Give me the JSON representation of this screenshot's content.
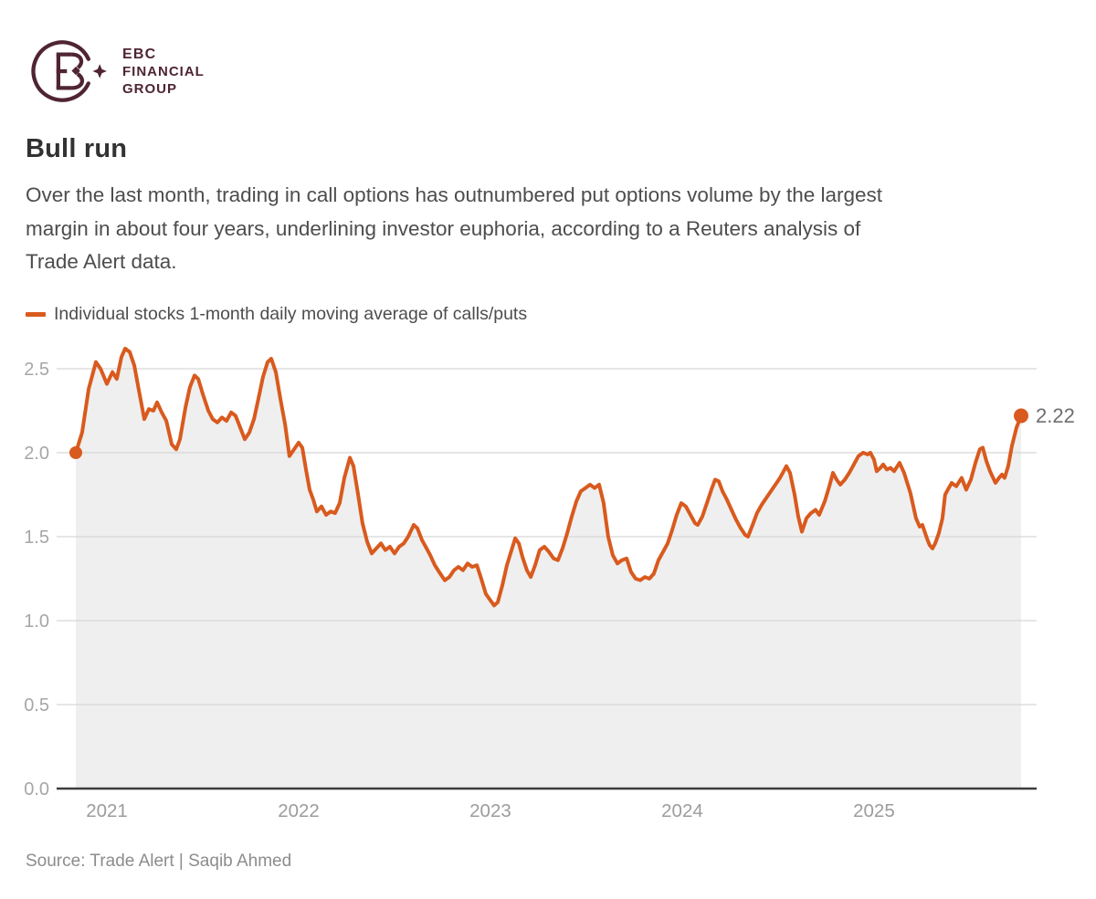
{
  "logo": {
    "line1": "EBC",
    "line2": "FINANCIAL",
    "line3": "GROUP"
  },
  "header": {
    "title": "Bull run"
  },
  "subtitle_lines": [
    "Over the last month, trading in call options has outnumbered put options volume by the largest",
    "margin in about four years, underlining investor euphoria, according to a Reuters analysis of",
    "Trade Alert data."
  ],
  "legend": {
    "label": "Individual stocks 1-month daily moving average of calls/puts"
  },
  "source": "Source: Trade Alert | Saqib Ahmed",
  "colors": {
    "accent": "#d95a1e",
    "logo": "#4f2433",
    "area_fill": "#efefef",
    "grid": "#d8d8d8",
    "axis": "#3d3d3d",
    "y_tick_text": "#a6a6a6",
    "x_tick_text": "#9c9c9c",
    "end_label_text": "#6e6e6e",
    "title_text": "#323232",
    "body_text": "#4d4d4d",
    "source_text": "#8c8c8c"
  },
  "chart_data": {
    "type": "area",
    "title": "Bull run",
    "series_name": "Individual stocks 1-month daily moving average of calls/puts",
    "grid": "horizontal",
    "legend_position": "top-left",
    "x_domain": [
      2020.738,
      2025.848
    ],
    "ylim": [
      0,
      2.674
    ],
    "y_ticks": [
      0.0,
      0.5,
      1.0,
      1.5,
      2.0,
      2.5
    ],
    "y_tick_labels": [
      "0.0",
      "0.5",
      "1.0",
      "1.5",
      "2.0",
      "2.5"
    ],
    "x_ticks": [
      2021,
      2022,
      2023,
      2024,
      2025
    ],
    "x_tick_labels": [
      "2021",
      "2022",
      "2023",
      "2024",
      "2025"
    ],
    "first_value": 2.0,
    "last_value": 2.22,
    "end_label": "2.22",
    "points": [
      [
        2020.838,
        2.0
      ],
      [
        2020.871,
        2.12
      ],
      [
        2020.905,
        2.38
      ],
      [
        2020.943,
        2.54
      ],
      [
        2020.967,
        2.5
      ],
      [
        2021.0,
        2.41
      ],
      [
        2021.029,
        2.48
      ],
      [
        2021.052,
        2.44
      ],
      [
        2021.076,
        2.57
      ],
      [
        2021.095,
        2.62
      ],
      [
        2021.119,
        2.6
      ],
      [
        2021.143,
        2.52
      ],
      [
        2021.167,
        2.37
      ],
      [
        2021.195,
        2.2
      ],
      [
        2021.219,
        2.26
      ],
      [
        2021.243,
        2.25
      ],
      [
        2021.262,
        2.3
      ],
      [
        2021.286,
        2.24
      ],
      [
        2021.31,
        2.19
      ],
      [
        2021.338,
        2.05
      ],
      [
        2021.362,
        2.02
      ],
      [
        2021.381,
        2.08
      ],
      [
        2021.41,
        2.27
      ],
      [
        2021.433,
        2.39
      ],
      [
        2021.457,
        2.46
      ],
      [
        2021.476,
        2.44
      ],
      [
        2021.5,
        2.35
      ],
      [
        2021.529,
        2.25
      ],
      [
        2021.552,
        2.2
      ],
      [
        2021.576,
        2.18
      ],
      [
        2021.6,
        2.21
      ],
      [
        2021.624,
        2.19
      ],
      [
        2021.648,
        2.24
      ],
      [
        2021.671,
        2.22
      ],
      [
        2021.695,
        2.15
      ],
      [
        2021.719,
        2.08
      ],
      [
        2021.743,
        2.12
      ],
      [
        2021.767,
        2.2
      ],
      [
        2021.79,
        2.32
      ],
      [
        2021.814,
        2.45
      ],
      [
        2021.838,
        2.54
      ],
      [
        2021.857,
        2.56
      ],
      [
        2021.881,
        2.48
      ],
      [
        2021.905,
        2.32
      ],
      [
        2021.929,
        2.17
      ],
      [
        2021.952,
        1.98
      ],
      [
        2021.976,
        2.02
      ],
      [
        2022.0,
        2.06
      ],
      [
        2022.019,
        2.03
      ],
      [
        2022.038,
        1.9
      ],
      [
        2022.057,
        1.78
      ],
      [
        2022.076,
        1.72
      ],
      [
        2022.095,
        1.65
      ],
      [
        2022.119,
        1.68
      ],
      [
        2022.143,
        1.63
      ],
      [
        2022.167,
        1.65
      ],
      [
        2022.19,
        1.64
      ],
      [
        2022.214,
        1.7
      ],
      [
        2022.238,
        1.85
      ],
      [
        2022.267,
        1.97
      ],
      [
        2022.286,
        1.92
      ],
      [
        2022.31,
        1.75
      ],
      [
        2022.333,
        1.58
      ],
      [
        2022.357,
        1.47
      ],
      [
        2022.381,
        1.4
      ],
      [
        2022.405,
        1.43
      ],
      [
        2022.429,
        1.46
      ],
      [
        2022.452,
        1.42
      ],
      [
        2022.476,
        1.44
      ],
      [
        2022.5,
        1.4
      ],
      [
        2022.524,
        1.44
      ],
      [
        2022.548,
        1.46
      ],
      [
        2022.571,
        1.5
      ],
      [
        2022.6,
        1.57
      ],
      [
        2022.619,
        1.55
      ],
      [
        2022.643,
        1.48
      ],
      [
        2022.667,
        1.43
      ],
      [
        2022.686,
        1.39
      ],
      [
        2022.71,
        1.33
      ],
      [
        2022.738,
        1.28
      ],
      [
        2022.762,
        1.24
      ],
      [
        2022.786,
        1.26
      ],
      [
        2022.81,
        1.3
      ],
      [
        2022.833,
        1.32
      ],
      [
        2022.857,
        1.3
      ],
      [
        2022.881,
        1.34
      ],
      [
        2022.905,
        1.32
      ],
      [
        2022.929,
        1.33
      ],
      [
        2022.952,
        1.25
      ],
      [
        2022.976,
        1.16
      ],
      [
        2023.0,
        1.12
      ],
      [
        2023.019,
        1.09
      ],
      [
        2023.038,
        1.11
      ],
      [
        2023.062,
        1.21
      ],
      [
        2023.086,
        1.33
      ],
      [
        2023.11,
        1.42
      ],
      [
        2023.129,
        1.49
      ],
      [
        2023.148,
        1.46
      ],
      [
        2023.167,
        1.38
      ],
      [
        2023.19,
        1.3
      ],
      [
        2023.21,
        1.26
      ],
      [
        2023.233,
        1.33
      ],
      [
        2023.257,
        1.42
      ],
      [
        2023.281,
        1.44
      ],
      [
        2023.305,
        1.41
      ],
      [
        2023.329,
        1.37
      ],
      [
        2023.352,
        1.36
      ],
      [
        2023.376,
        1.43
      ],
      [
        2023.4,
        1.52
      ],
      [
        2023.424,
        1.62
      ],
      [
        2023.448,
        1.71
      ],
      [
        2023.471,
        1.77
      ],
      [
        2023.495,
        1.79
      ],
      [
        2023.519,
        1.81
      ],
      [
        2023.543,
        1.79
      ],
      [
        2023.567,
        1.81
      ],
      [
        2023.59,
        1.7
      ],
      [
        2023.614,
        1.5
      ],
      [
        2023.638,
        1.39
      ],
      [
        2023.662,
        1.34
      ],
      [
        2023.686,
        1.36
      ],
      [
        2023.71,
        1.37
      ],
      [
        2023.733,
        1.29
      ],
      [
        2023.757,
        1.25
      ],
      [
        2023.781,
        1.24
      ],
      [
        2023.805,
        1.26
      ],
      [
        2023.829,
        1.25
      ],
      [
        2023.852,
        1.28
      ],
      [
        2023.876,
        1.36
      ],
      [
        2023.9,
        1.41
      ],
      [
        2023.924,
        1.46
      ],
      [
        2023.948,
        1.54
      ],
      [
        2023.971,
        1.63
      ],
      [
        2023.995,
        1.7
      ],
      [
        2024.019,
        1.68
      ],
      [
        2024.043,
        1.63
      ],
      [
        2024.067,
        1.58
      ],
      [
        2024.081,
        1.57
      ],
      [
        2024.105,
        1.62
      ],
      [
        2024.129,
        1.7
      ],
      [
        2024.152,
        1.78
      ],
      [
        2024.171,
        1.84
      ],
      [
        2024.19,
        1.83
      ],
      [
        2024.21,
        1.77
      ],
      [
        2024.233,
        1.72
      ],
      [
        2024.257,
        1.66
      ],
      [
        2024.281,
        1.6
      ],
      [
        2024.305,
        1.55
      ],
      [
        2024.329,
        1.51
      ],
      [
        2024.343,
        1.5
      ],
      [
        2024.367,
        1.57
      ],
      [
        2024.39,
        1.64
      ],
      [
        2024.414,
        1.69
      ],
      [
        2024.438,
        1.73
      ],
      [
        2024.462,
        1.77
      ],
      [
        2024.486,
        1.81
      ],
      [
        2024.51,
        1.85
      ],
      [
        2024.529,
        1.89
      ],
      [
        2024.543,
        1.92
      ],
      [
        2024.562,
        1.88
      ],
      [
        2024.586,
        1.75
      ],
      [
        2024.605,
        1.62
      ],
      [
        2024.624,
        1.53
      ],
      [
        2024.648,
        1.61
      ],
      [
        2024.671,
        1.64
      ],
      [
        2024.695,
        1.66
      ],
      [
        2024.714,
        1.63
      ],
      [
        2024.743,
        1.71
      ],
      [
        2024.767,
        1.8
      ],
      [
        2024.786,
        1.88
      ],
      [
        2024.805,
        1.84
      ],
      [
        2024.824,
        1.81
      ],
      [
        2024.848,
        1.84
      ],
      [
        2024.871,
        1.88
      ],
      [
        2024.895,
        1.93
      ],
      [
        2024.919,
        1.98
      ],
      [
        2024.943,
        2.0
      ],
      [
        2024.967,
        1.99
      ],
      [
        2024.981,
        2.0
      ],
      [
        2025.0,
        1.96
      ],
      [
        2025.014,
        1.89
      ],
      [
        2025.033,
        1.91
      ],
      [
        2025.048,
        1.93
      ],
      [
        2025.067,
        1.9
      ],
      [
        2025.086,
        1.91
      ],
      [
        2025.105,
        1.89
      ],
      [
        2025.133,
        1.94
      ],
      [
        2025.157,
        1.88
      ],
      [
        2025.19,
        1.76
      ],
      [
        2025.219,
        1.61
      ],
      [
        2025.238,
        1.56
      ],
      [
        2025.252,
        1.57
      ],
      [
        2025.276,
        1.49
      ],
      [
        2025.29,
        1.45
      ],
      [
        2025.305,
        1.43
      ],
      [
        2025.319,
        1.46
      ],
      [
        2025.338,
        1.52
      ],
      [
        2025.357,
        1.61
      ],
      [
        2025.371,
        1.75
      ],
      [
        2025.39,
        1.79
      ],
      [
        2025.405,
        1.82
      ],
      [
        2025.429,
        1.8
      ],
      [
        2025.457,
        1.85
      ],
      [
        2025.481,
        1.78
      ],
      [
        2025.505,
        1.84
      ],
      [
        2025.529,
        1.94
      ],
      [
        2025.552,
        2.02
      ],
      [
        2025.567,
        2.03
      ],
      [
        2025.586,
        1.95
      ],
      [
        2025.605,
        1.89
      ],
      [
        2025.633,
        1.82
      ],
      [
        2025.652,
        1.85
      ],
      [
        2025.667,
        1.87
      ],
      [
        2025.681,
        1.85
      ],
      [
        2025.7,
        1.92
      ],
      [
        2025.719,
        2.04
      ],
      [
        2025.743,
        2.15
      ],
      [
        2025.767,
        2.22
      ]
    ]
  }
}
